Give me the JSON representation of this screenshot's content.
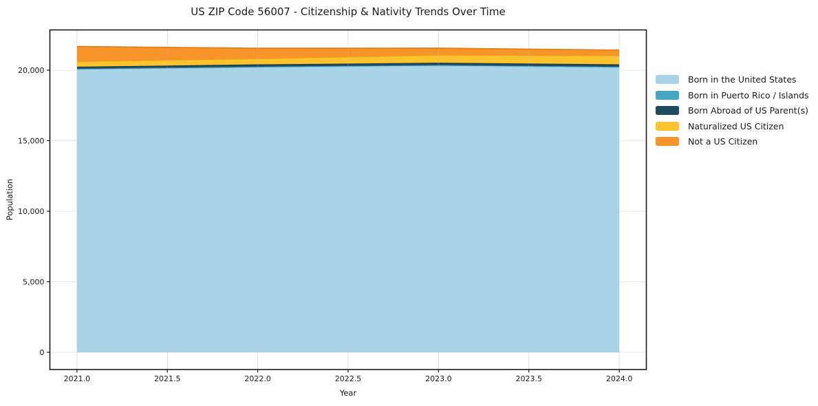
{
  "chart_data": {
    "type": "area",
    "stacked": true,
    "title": "US ZIP Code 56007 - Citizenship & Nativity Trends Over Time",
    "xlabel": "Year",
    "ylabel": "Population",
    "x": [
      2021,
      2022,
      2023,
      2024
    ],
    "series": [
      {
        "name": "Born in the United States",
        "color": "#A9D4E8",
        "edge": "#8CC1DC",
        "values": [
          20060,
          20210,
          20320,
          20200
        ]
      },
      {
        "name": "Born in Puerto Rico / Islands",
        "color": "#45A6C3",
        "edge": "#338FAB",
        "values": [
          45,
          40,
          45,
          45
        ]
      },
      {
        "name": "Born Abroad of US Parent(s)",
        "color": "#1F4A5F",
        "edge": "#16374A",
        "values": [
          140,
          160,
          160,
          165
        ]
      },
      {
        "name": "Naturalized US Citizen",
        "color": "#FCC32E",
        "edge": "#E8AC15",
        "values": [
          365,
          405,
          540,
          620
        ]
      },
      {
        "name": "Not a US Citizen",
        "color": "#F8952A",
        "edge": "#E37F15",
        "values": [
          1065,
          735,
          490,
          390
        ]
      }
    ],
    "x_ticks": {
      "values": [
        2021.0,
        2021.5,
        2022.0,
        2022.5,
        2023.0,
        2023.5,
        2024.0
      ],
      "labels": [
        "2021.0",
        "2021.5",
        "2022.0",
        "2022.5",
        "2023.0",
        "2023.5",
        "2024.0"
      ]
    },
    "y_ticks": {
      "values": [
        0,
        5000,
        10000,
        15000,
        20000
      ],
      "labels": [
        "0",
        "5,000",
        "10,000",
        "15,000",
        "20,000"
      ]
    },
    "xlim": [
      2020.85,
      2024.15
    ],
    "ylim": [
      -1220,
      22850
    ],
    "grid": true,
    "legend_position": "right",
    "background": "#ffffff",
    "axis_color": "#1a1a1a",
    "grid_color": "#e9e9e9",
    "tick_label_color": "#1a1a1a"
  }
}
